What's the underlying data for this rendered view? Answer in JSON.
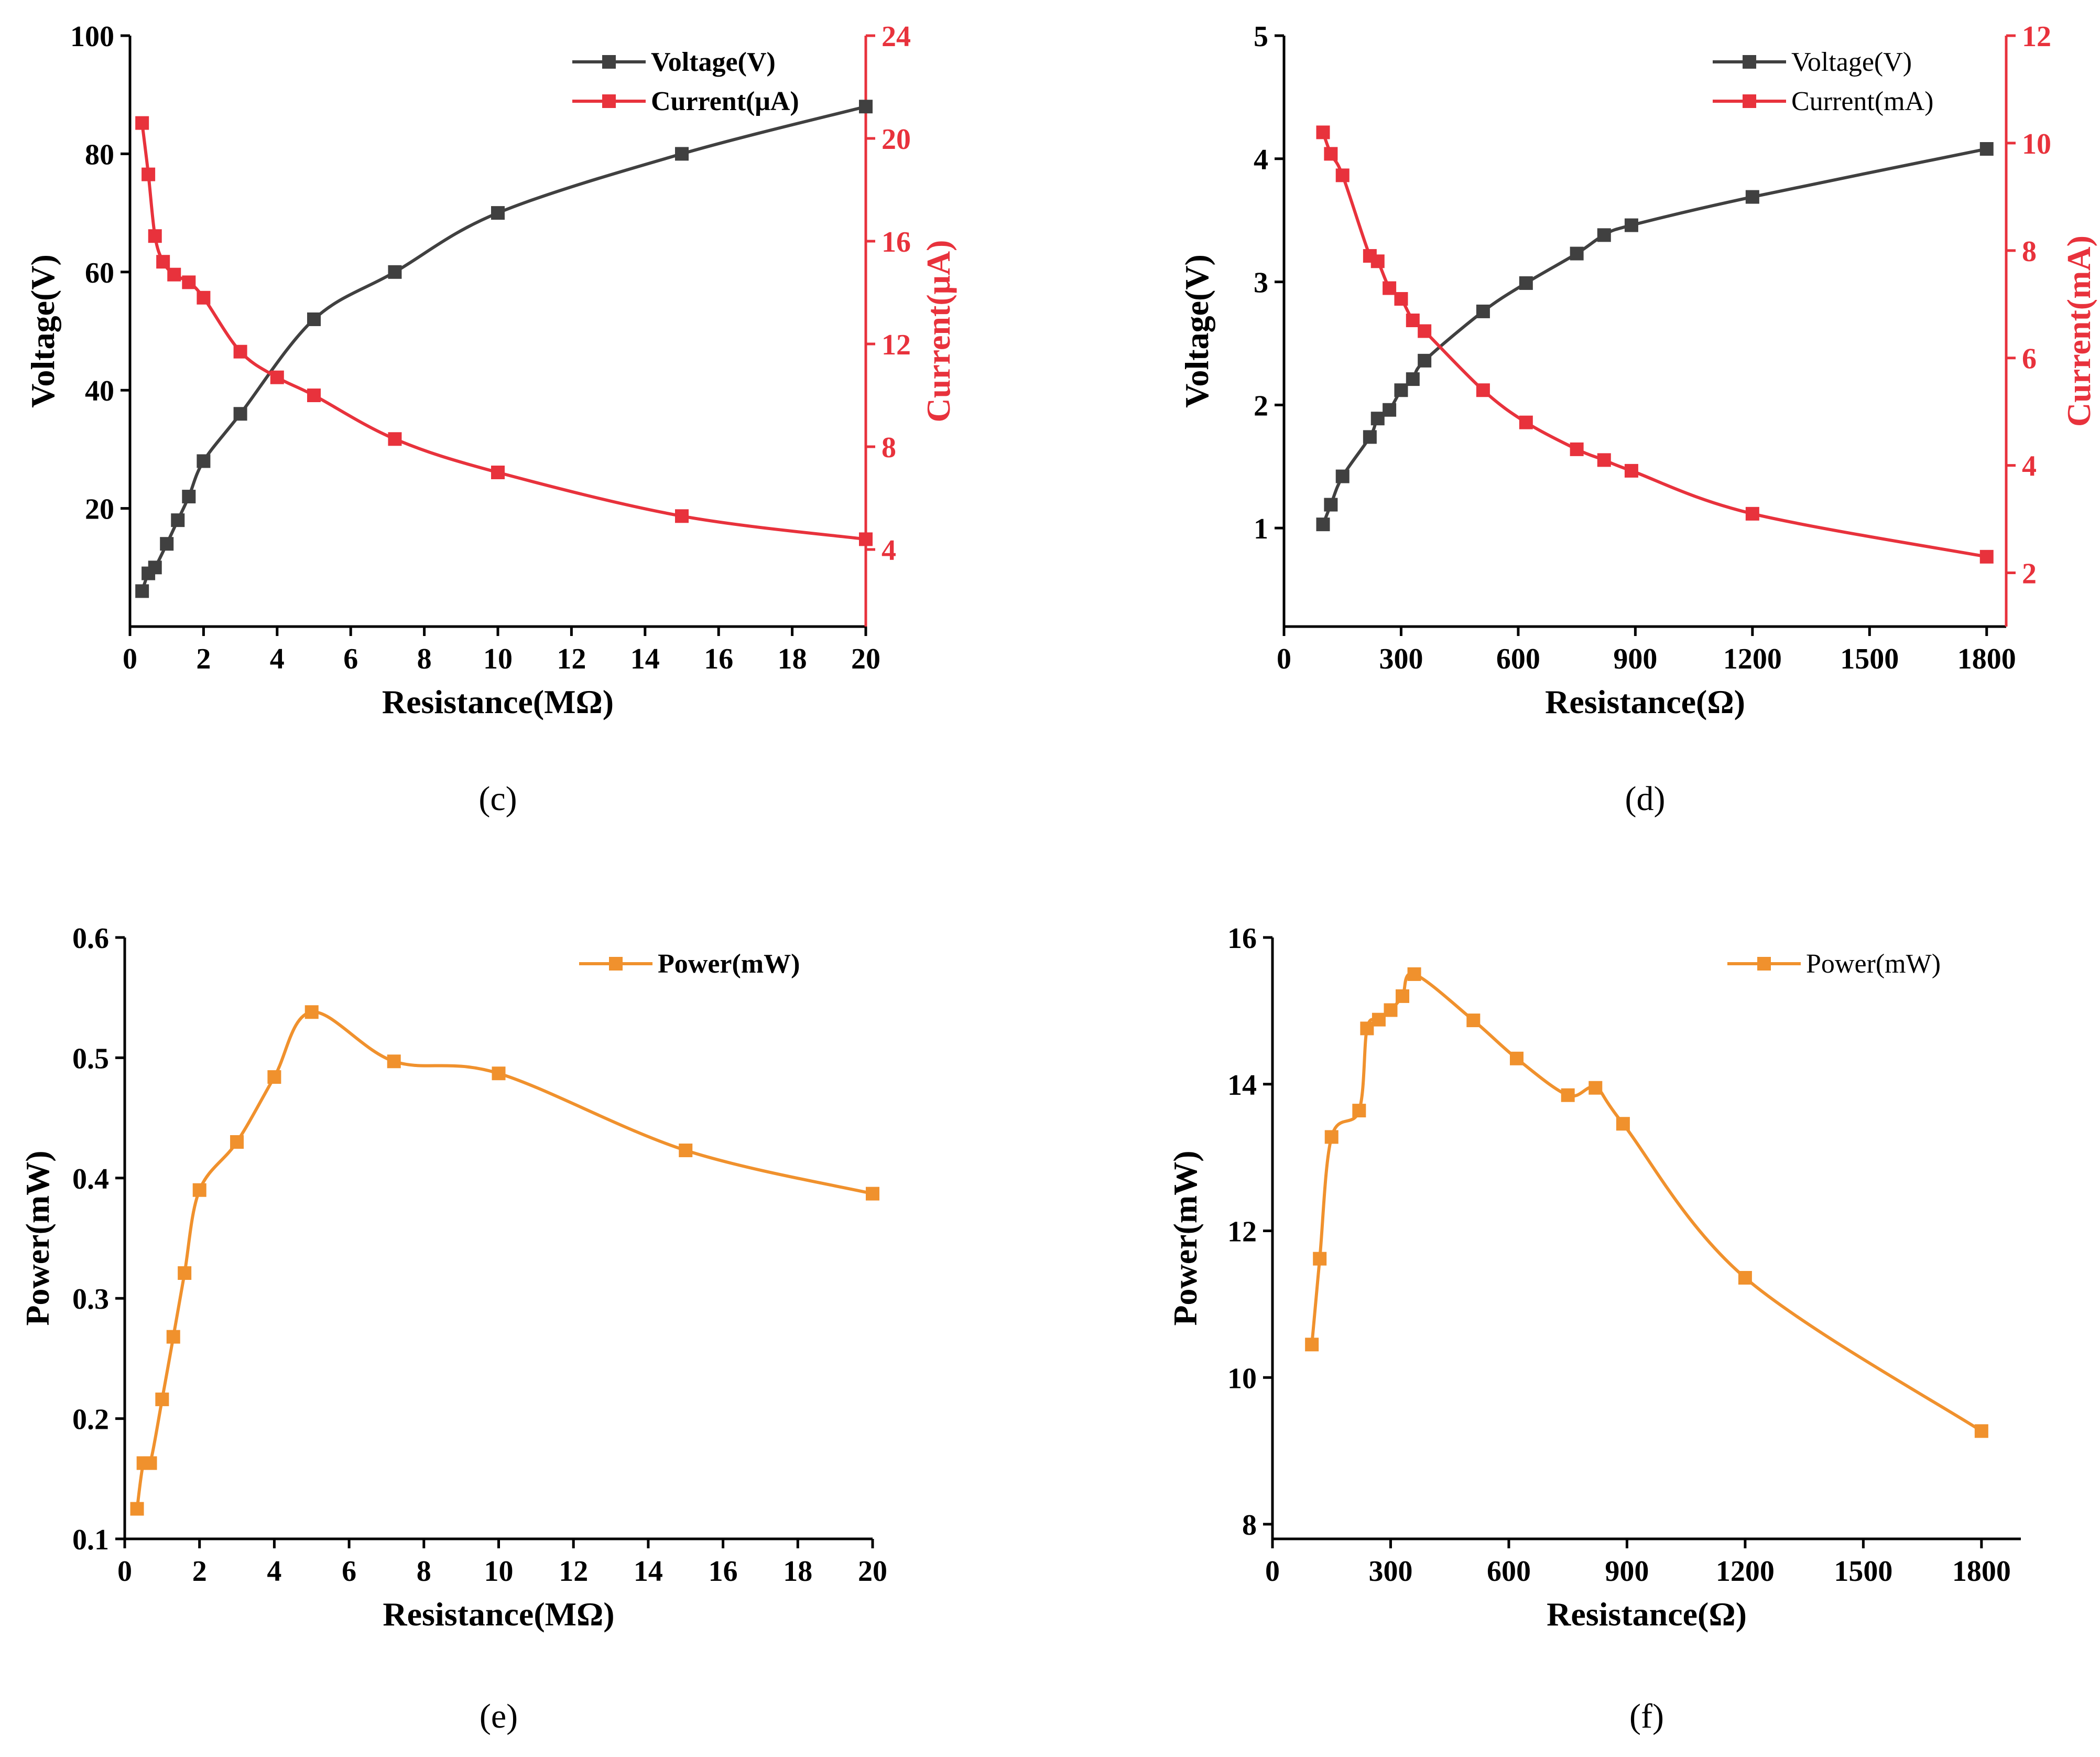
{
  "colors": {
    "axis": "#000000",
    "voltage": "#404040",
    "current": "#e8323c",
    "power": "#f0912d"
  },
  "chart_data": [
    {
      "id": "c",
      "type": "line",
      "panel_label": "(c)",
      "xlabel": "Resistance(MΩ)",
      "ylabel": "Voltage(V)",
      "y2label": "Current(μA)",
      "xlim": [
        0,
        20
      ],
      "ylim": [
        0,
        100
      ],
      "y2lim": [
        1,
        24
      ],
      "xticks": [
        0,
        2,
        4,
        6,
        8,
        10,
        12,
        14,
        16,
        18,
        20
      ],
      "yticks": [
        20,
        40,
        60,
        80,
        100
      ],
      "y2ticks": [
        4,
        8,
        12,
        16,
        20,
        24
      ],
      "legend_position": "top-right",
      "legend_bold": true,
      "series": [
        {
          "name": "Voltage(V)",
          "axis": "left",
          "color": "voltage",
          "x": [
            0.33,
            0.5,
            0.68,
            1,
            1.3,
            1.6,
            2,
            3,
            5,
            7.2,
            10,
            15,
            20
          ],
          "y": [
            6,
            9,
            10,
            14,
            18,
            22,
            28,
            36,
            52,
            60,
            70,
            80,
            88
          ]
        },
        {
          "name": "Current(μA)",
          "axis": "right",
          "color": "current",
          "x": [
            0.33,
            0.5,
            0.68,
            0.9,
            1.2,
            1.6,
            2,
            3,
            4,
            5,
            7.2,
            10,
            15,
            20
          ],
          "y": [
            20.6,
            18.6,
            16.2,
            15.2,
            14.7,
            14.4,
            13.8,
            11.7,
            10.7,
            10,
            8.3,
            7,
            5.3,
            4.4
          ]
        }
      ]
    },
    {
      "id": "d",
      "type": "line",
      "panel_label": "(d)",
      "xlabel": "Resistance(Ω)",
      "ylabel": "Voltage(V)",
      "y2label": "Current(mA)",
      "xlim": [
        0,
        1850
      ],
      "ylim": [
        0.2,
        5
      ],
      "y2lim": [
        1,
        12
      ],
      "xticks": [
        0,
        300,
        600,
        900,
        1200,
        1500,
        1800
      ],
      "yticks": [
        1,
        2,
        3,
        4,
        5
      ],
      "y2ticks": [
        2,
        4,
        6,
        8,
        10,
        12
      ],
      "legend_position": "top-right",
      "legend_bold": false,
      "series": [
        {
          "name": "Voltage(V)",
          "axis": "left",
          "color": "voltage",
          "x": [
            100,
            120,
            150,
            220,
            240,
            270,
            300,
            330,
            360,
            510,
            620,
            750,
            820,
            890,
            1200,
            1800
          ],
          "y": [
            1.03,
            1.19,
            1.42,
            1.74,
            1.89,
            1.96,
            2.12,
            2.21,
            2.36,
            2.76,
            2.99,
            3.23,
            3.38,
            3.46,
            3.69,
            4.08
          ]
        },
        {
          "name": "Current(mA)",
          "axis": "right",
          "color": "current",
          "x": [
            100,
            120,
            150,
            220,
            240,
            270,
            300,
            330,
            360,
            510,
            620,
            750,
            820,
            890,
            1200,
            1800
          ],
          "y": [
            10.2,
            9.8,
            9.4,
            7.9,
            7.8,
            7.3,
            7.1,
            6.7,
            6.5,
            5.4,
            4.8,
            4.3,
            4.1,
            3.9,
            3.1,
            2.3
          ]
        }
      ]
    },
    {
      "id": "e",
      "type": "line",
      "panel_label": "(e)",
      "xlabel": "Resistance(MΩ)",
      "ylabel": "Power(mW)",
      "xlim": [
        0,
        20
      ],
      "ylim": [
        0.1,
        0.6
      ],
      "xticks": [
        0,
        2,
        4,
        6,
        8,
        10,
        12,
        14,
        16,
        18,
        20
      ],
      "yticks": [
        0.1,
        0.2,
        0.3,
        0.4,
        0.5,
        0.6
      ],
      "legend_position": "top-right",
      "legend_bold": true,
      "series": [
        {
          "name": "Power(mW)",
          "axis": "left",
          "color": "power",
          "x": [
            0.33,
            0.5,
            0.68,
            1,
            1.3,
            1.6,
            2,
            3,
            4,
            5,
            7.2,
            10,
            15,
            20
          ],
          "y": [
            0.125,
            0.163,
            0.163,
            0.216,
            0.268,
            0.321,
            0.39,
            0.43,
            0.484,
            0.538,
            0.497,
            0.487,
            0.423,
            0.387
          ]
        }
      ]
    },
    {
      "id": "f",
      "type": "line",
      "panel_label": "(f)",
      "xlabel": "Resistance(Ω)",
      "ylabel": "Power(mW)",
      "xlim": [
        0,
        1900
      ],
      "ylim": [
        7.8,
        16
      ],
      "xticks": [
        0,
        300,
        600,
        900,
        1200,
        1500,
        1800
      ],
      "yticks": [
        8,
        10,
        12,
        14,
        16
      ],
      "legend_position": "top-right",
      "legend_bold": false,
      "series": [
        {
          "name": "Power(mW)",
          "axis": "left",
          "color": "power",
          "x": [
            100,
            120,
            150,
            220,
            240,
            270,
            300,
            330,
            360,
            510,
            620,
            750,
            820,
            890,
            1200,
            1800
          ],
          "y": [
            10.45,
            11.62,
            13.28,
            13.64,
            14.76,
            14.88,
            15.01,
            15.2,
            15.5,
            14.87,
            14.35,
            13.85,
            13.95,
            13.46,
            11.36,
            9.27
          ]
        }
      ]
    }
  ]
}
